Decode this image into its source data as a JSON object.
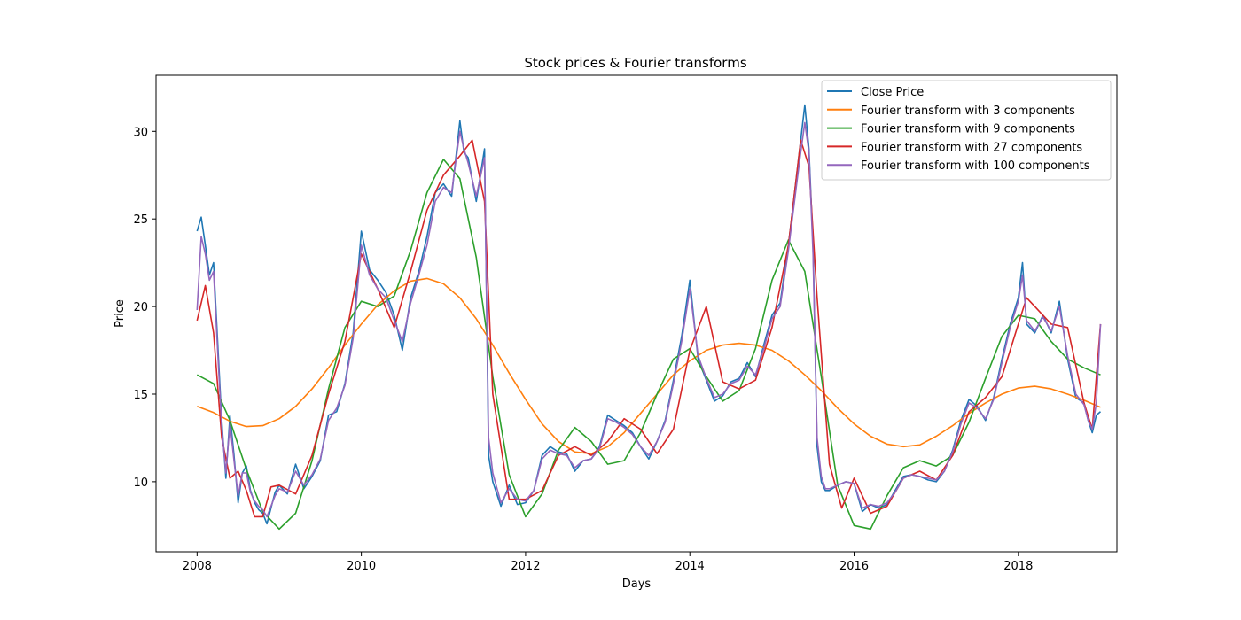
{
  "chart_data": {
    "type": "line",
    "title": "Stock prices & Fourier transforms",
    "xlabel": "Days",
    "ylabel": "Price",
    "xlim": [
      2007.5,
      2019.2
    ],
    "ylim": [
      6,
      33.2
    ],
    "xticks": [
      2008,
      2010,
      2012,
      2014,
      2016,
      2018
    ],
    "xtick_labels": [
      "2008",
      "2010",
      "2012",
      "2014",
      "2016",
      "2018"
    ],
    "yticks": [
      10,
      15,
      20,
      25,
      30
    ],
    "ytick_labels": [
      "10",
      "15",
      "20",
      "25",
      "30"
    ],
    "grid": false,
    "legend_position": "top-right",
    "series": [
      {
        "name": "Close Price",
        "color": "#1f77b4",
        "x": [
          2008.0,
          2008.05,
          2008.1,
          2008.15,
          2008.2,
          2008.25,
          2008.3,
          2008.35,
          2008.4,
          2008.45,
          2008.5,
          2008.55,
          2008.6,
          2008.65,
          2008.7,
          2008.75,
          2008.8,
          2008.85,
          2008.9,
          2008.95,
          2009.0,
          2009.1,
          2009.2,
          2009.3,
          2009.4,
          2009.5,
          2009.6,
          2009.7,
          2009.8,
          2009.9,
          2010.0,
          2010.1,
          2010.2,
          2010.3,
          2010.4,
          2010.5,
          2010.6,
          2010.7,
          2010.8,
          2010.9,
          2011.0,
          2011.1,
          2011.2,
          2011.25,
          2011.3,
          2011.4,
          2011.5,
          2011.55,
          2011.6,
          2011.7,
          2011.8,
          2011.9,
          2012.0,
          2012.1,
          2012.2,
          2012.3,
          2012.4,
          2012.5,
          2012.6,
          2012.7,
          2012.8,
          2012.9,
          2013.0,
          2013.1,
          2013.2,
          2013.3,
          2013.4,
          2013.5,
          2013.6,
          2013.7,
          2013.8,
          2013.9,
          2014.0,
          2014.1,
          2014.2,
          2014.3,
          2014.4,
          2014.5,
          2014.6,
          2014.7,
          2014.8,
          2014.9,
          2015.0,
          2015.1,
          2015.2,
          2015.3,
          2015.35,
          2015.4,
          2015.45,
          2015.5,
          2015.55,
          2015.6,
          2015.65,
          2015.7,
          2015.8,
          2015.9,
          2016.0,
          2016.1,
          2016.2,
          2016.3,
          2016.4,
          2016.5,
          2016.6,
          2016.7,
          2016.8,
          2016.9,
          2017.0,
          2017.1,
          2017.2,
          2017.3,
          2017.4,
          2017.5,
          2017.6,
          2017.7,
          2017.8,
          2017.9,
          2018.0,
          2018.05,
          2018.1,
          2018.2,
          2018.3,
          2018.4,
          2018.5,
          2018.6,
          2018.7,
          2018.8,
          2018.85,
          2018.9,
          2018.95,
          2019.0
        ],
        "y": [
          24.3,
          25.1,
          23.5,
          21.8,
          22.5,
          18.0,
          13.5,
          10.2,
          13.8,
          11.5,
          8.8,
          10.5,
          10.9,
          9.5,
          8.8,
          8.4,
          8.2,
          7.6,
          8.5,
          9.4,
          9.8,
          9.3,
          11.0,
          9.6,
          10.3,
          11.2,
          13.8,
          14.0,
          15.6,
          18.5,
          24.3,
          22.1,
          21.5,
          20.8,
          19.5,
          17.5,
          20.5,
          22.0,
          24.0,
          26.5,
          27.0,
          26.3,
          30.6,
          28.8,
          28.5,
          26.0,
          29.0,
          11.5,
          10.0,
          8.6,
          9.8,
          8.7,
          8.8,
          9.5,
          11.5,
          12.0,
          11.7,
          11.6,
          10.6,
          11.2,
          11.3,
          12.0,
          13.8,
          13.5,
          13.2,
          12.8,
          12.0,
          11.3,
          12.3,
          13.5,
          15.8,
          18.3,
          21.5,
          17.0,
          15.8,
          14.6,
          14.9,
          15.7,
          15.9,
          16.8,
          16.0,
          17.8,
          19.5,
          20.2,
          23.5,
          27.5,
          29.5,
          31.5,
          29.0,
          23.5,
          12.0,
          10.0,
          9.5,
          9.5,
          9.8,
          10.0,
          9.9,
          8.3,
          8.7,
          8.5,
          8.7,
          9.5,
          10.3,
          10.4,
          10.3,
          10.1,
          10.0,
          10.6,
          11.8,
          13.5,
          14.7,
          14.3,
          13.5,
          14.8,
          17.0,
          19.0,
          20.5,
          22.5,
          19.0,
          18.5,
          19.5,
          18.5,
          20.3,
          17.0,
          14.8,
          14.5,
          13.5,
          12.8,
          13.8,
          14.0
        ]
      },
      {
        "name": "Fourier transform with 3 components",
        "color": "#ff7f0e",
        "x": [
          2008.0,
          2008.2,
          2008.4,
          2008.6,
          2008.8,
          2009.0,
          2009.2,
          2009.4,
          2009.6,
          2009.8,
          2010.0,
          2010.2,
          2010.4,
          2010.6,
          2010.8,
          2011.0,
          2011.2,
          2011.4,
          2011.6,
          2011.8,
          2012.0,
          2012.2,
          2012.4,
          2012.6,
          2012.8,
          2013.0,
          2013.2,
          2013.4,
          2013.6,
          2013.8,
          2014.0,
          2014.2,
          2014.4,
          2014.6,
          2014.8,
          2015.0,
          2015.2,
          2015.4,
          2015.6,
          2015.8,
          2016.0,
          2016.2,
          2016.4,
          2016.6,
          2016.8,
          2017.0,
          2017.2,
          2017.4,
          2017.6,
          2017.8,
          2018.0,
          2018.2,
          2018.4,
          2018.6,
          2018.8,
          2019.0
        ],
        "y": [
          14.3,
          13.95,
          13.45,
          13.15,
          13.2,
          13.6,
          14.3,
          15.3,
          16.5,
          17.8,
          19.0,
          20.1,
          20.9,
          21.45,
          21.6,
          21.3,
          20.5,
          19.3,
          17.8,
          16.2,
          14.7,
          13.3,
          12.3,
          11.7,
          11.6,
          12.0,
          12.8,
          13.9,
          15.0,
          16.1,
          16.9,
          17.5,
          17.8,
          17.9,
          17.8,
          17.5,
          16.9,
          16.1,
          15.2,
          14.2,
          13.3,
          12.6,
          12.15,
          12.0,
          12.1,
          12.6,
          13.2,
          13.9,
          14.5,
          15.0,
          15.35,
          15.45,
          15.3,
          15.0,
          14.65,
          14.25
        ]
      },
      {
        "name": "Fourier transform with 9 components",
        "color": "#2ca02c",
        "x": [
          2008.0,
          2008.2,
          2008.4,
          2008.6,
          2008.8,
          2009.0,
          2009.2,
          2009.4,
          2009.6,
          2009.8,
          2010.0,
          2010.2,
          2010.4,
          2010.6,
          2010.8,
          2011.0,
          2011.2,
          2011.4,
          2011.6,
          2011.8,
          2012.0,
          2012.2,
          2012.4,
          2012.6,
          2012.8,
          2013.0,
          2013.2,
          2013.4,
          2013.6,
          2013.8,
          2014.0,
          2014.2,
          2014.4,
          2014.6,
          2014.8,
          2015.0,
          2015.2,
          2015.4,
          2015.6,
          2015.8,
          2016.0,
          2016.2,
          2016.4,
          2016.6,
          2016.8,
          2017.0,
          2017.2,
          2017.4,
          2017.6,
          2017.8,
          2018.0,
          2018.2,
          2018.4,
          2018.6,
          2018.8,
          2019.0
        ],
        "y": [
          16.1,
          15.6,
          13.5,
          10.7,
          8.3,
          7.3,
          8.2,
          11.2,
          15.3,
          18.8,
          20.3,
          20.0,
          20.6,
          23.2,
          26.5,
          28.4,
          27.3,
          22.8,
          16.0,
          10.4,
          8.0,
          9.3,
          11.8,
          13.1,
          12.3,
          11.0,
          11.2,
          12.8,
          15.0,
          17.0,
          17.6,
          16.0,
          14.6,
          15.2,
          17.6,
          21.5,
          23.8,
          22.0,
          16.0,
          9.8,
          7.5,
          7.3,
          9.2,
          10.8,
          11.2,
          10.9,
          11.5,
          13.4,
          15.9,
          18.3,
          19.5,
          19.3,
          18.0,
          17.0,
          16.5,
          16.1
        ]
      },
      {
        "name": "Fourier transform with 27 components",
        "color": "#d62728",
        "x": [
          2008.0,
          2008.1,
          2008.2,
          2008.3,
          2008.4,
          2008.5,
          2008.6,
          2008.7,
          2008.8,
          2008.9,
          2009.0,
          2009.2,
          2009.4,
          2009.6,
          2009.8,
          2010.0,
          2010.2,
          2010.4,
          2010.6,
          2010.8,
          2011.0,
          2011.2,
          2011.35,
          2011.5,
          2011.6,
          2011.8,
          2012.0,
          2012.2,
          2012.4,
          2012.6,
          2012.8,
          2013.0,
          2013.2,
          2013.4,
          2013.6,
          2013.8,
          2014.0,
          2014.2,
          2014.4,
          2014.6,
          2014.8,
          2015.0,
          2015.2,
          2015.35,
          2015.45,
          2015.55,
          2015.7,
          2015.85,
          2016.0,
          2016.2,
          2016.4,
          2016.6,
          2016.8,
          2017.0,
          2017.2,
          2017.4,
          2017.6,
          2017.8,
          2018.0,
          2018.1,
          2018.2,
          2018.4,
          2018.6,
          2018.8,
          2018.9,
          2019.0
        ],
        "y": [
          19.2,
          21.2,
          18.5,
          12.5,
          10.2,
          10.6,
          9.5,
          8.0,
          8.0,
          9.7,
          9.8,
          9.3,
          11.5,
          15.0,
          18.0,
          23.0,
          21.0,
          18.8,
          22.0,
          25.5,
          27.5,
          28.6,
          29.5,
          26.0,
          15.0,
          9.0,
          9.0,
          9.5,
          11.5,
          12.0,
          11.5,
          12.3,
          13.6,
          13.0,
          11.6,
          13.0,
          17.5,
          20.0,
          15.7,
          15.3,
          15.8,
          18.8,
          23.5,
          29.5,
          28.0,
          20.5,
          11.0,
          8.5,
          10.2,
          8.2,
          8.6,
          10.2,
          10.6,
          10.1,
          11.5,
          14.0,
          14.8,
          16.0,
          19.0,
          20.5,
          20.0,
          19.0,
          18.8,
          14.5,
          13.0,
          19.0
        ]
      },
      {
        "name": "Fourier transform with 100 components",
        "color": "#9467bd",
        "x": [
          2008.0,
          2008.05,
          2008.1,
          2008.15,
          2008.2,
          2008.25,
          2008.3,
          2008.35,
          2008.4,
          2008.45,
          2008.5,
          2008.55,
          2008.6,
          2008.65,
          2008.7,
          2008.75,
          2008.8,
          2008.85,
          2008.9,
          2008.95,
          2009.0,
          2009.1,
          2009.2,
          2009.3,
          2009.4,
          2009.5,
          2009.6,
          2009.7,
          2009.8,
          2009.9,
          2010.0,
          2010.1,
          2010.2,
          2010.3,
          2010.4,
          2010.5,
          2010.6,
          2010.7,
          2010.8,
          2010.9,
          2011.0,
          2011.1,
          2011.2,
          2011.25,
          2011.3,
          2011.4,
          2011.5,
          2011.55,
          2011.6,
          2011.7,
          2011.8,
          2011.9,
          2012.0,
          2012.1,
          2012.2,
          2012.3,
          2012.4,
          2012.5,
          2012.6,
          2012.7,
          2012.8,
          2012.9,
          2013.0,
          2013.1,
          2013.2,
          2013.3,
          2013.4,
          2013.5,
          2013.6,
          2013.7,
          2013.8,
          2013.9,
          2014.0,
          2014.1,
          2014.2,
          2014.3,
          2014.4,
          2014.5,
          2014.6,
          2014.7,
          2014.8,
          2014.9,
          2015.0,
          2015.1,
          2015.2,
          2015.3,
          2015.35,
          2015.4,
          2015.45,
          2015.5,
          2015.55,
          2015.6,
          2015.65,
          2015.7,
          2015.8,
          2015.9,
          2016.0,
          2016.1,
          2016.2,
          2016.3,
          2016.4,
          2016.5,
          2016.6,
          2016.7,
          2016.8,
          2016.9,
          2017.0,
          2017.1,
          2017.2,
          2017.3,
          2017.4,
          2017.5,
          2017.6,
          2017.7,
          2017.8,
          2017.9,
          2018.0,
          2018.05,
          2018.1,
          2018.2,
          2018.3,
          2018.4,
          2018.5,
          2018.6,
          2018.7,
          2018.8,
          2018.85,
          2018.9,
          2018.95,
          2019.0
        ],
        "y": [
          19.8,
          24.0,
          23.0,
          21.5,
          22.0,
          17.5,
          13.2,
          10.5,
          13.3,
          11.2,
          9.2,
          10.5,
          10.5,
          9.4,
          8.9,
          8.6,
          8.4,
          8.0,
          8.6,
          9.2,
          9.6,
          9.4,
          10.6,
          9.8,
          10.4,
          11.3,
          13.5,
          14.2,
          15.5,
          18.2,
          23.5,
          21.8,
          21.0,
          20.5,
          19.2,
          18.0,
          20.2,
          21.8,
          23.5,
          26.0,
          26.8,
          26.5,
          30.0,
          29.0,
          28.2,
          26.3,
          28.5,
          12.5,
          10.5,
          8.8,
          9.6,
          9.0,
          8.9,
          9.5,
          11.3,
          11.8,
          11.6,
          11.5,
          10.8,
          11.2,
          11.3,
          11.9,
          13.6,
          13.4,
          13.1,
          12.7,
          12.0,
          11.5,
          12.3,
          13.4,
          15.6,
          18.0,
          21.0,
          17.2,
          15.9,
          14.8,
          15.0,
          15.6,
          15.8,
          16.6,
          16.1,
          17.6,
          19.3,
          20.0,
          23.2,
          27.0,
          28.8,
          30.5,
          28.8,
          23.0,
          12.5,
          10.3,
          9.6,
          9.6,
          9.8,
          10.0,
          9.9,
          8.5,
          8.7,
          8.6,
          8.8,
          9.4,
          10.2,
          10.4,
          10.3,
          10.2,
          10.1,
          10.6,
          11.7,
          13.3,
          14.5,
          14.2,
          13.6,
          14.7,
          16.8,
          18.8,
          20.3,
          21.8,
          19.2,
          18.6,
          19.4,
          18.6,
          20.0,
          17.2,
          15.0,
          14.4,
          13.5,
          13.0,
          14.5,
          19.0
        ]
      }
    ]
  }
}
